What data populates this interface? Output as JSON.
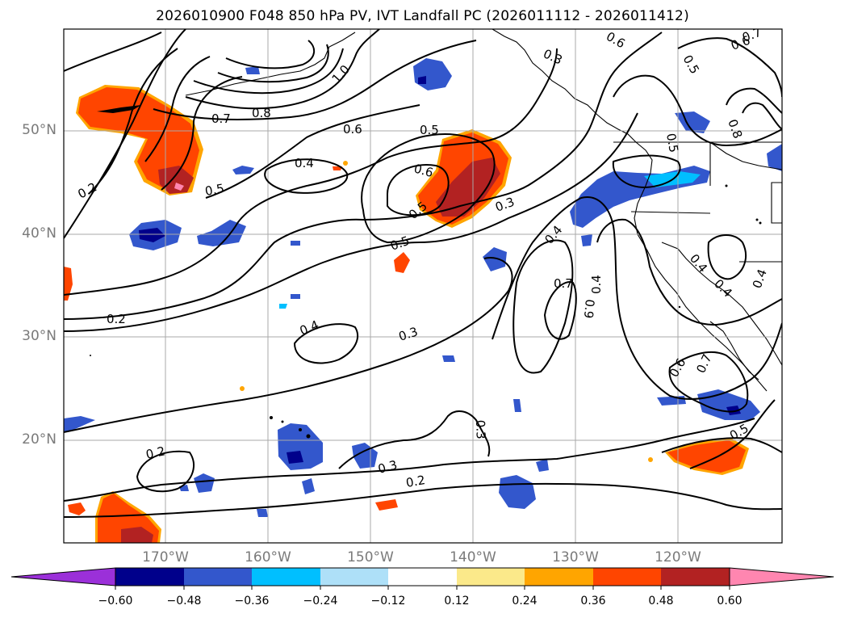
{
  "title": "2026010900 F048 850 hPa PV, IVT Landfall PC (2026011112 - 2026011412)",
  "lat_labels": [
    "50°N",
    "40°N",
    "30°N",
    "20°N"
  ],
  "lon_labels": [
    "170°W",
    "160°W",
    "150°W",
    "140°W",
    "130°W",
    "120°W"
  ],
  "contour_labels": [
    "0.2",
    "0.5",
    "0.7",
    "0.8",
    "1.0",
    "0.6",
    "0.4",
    "0.5",
    "0.6",
    "0.5",
    "0.3",
    "0.5",
    "0.3",
    "0.2",
    "0.4",
    "0.3",
    "0.2",
    "0.2",
    "0.3",
    "0.3",
    "0.4",
    "0.7",
    "0.9",
    "0.4",
    "0.6",
    "0.5",
    "0.6",
    "0.7",
    "0.8",
    "0.5",
    "0.4",
    "0.4",
    "0.4",
    "0.6",
    "0.7",
    "0.5"
  ],
  "colorbar": {
    "ticks": [
      "−0.60",
      "−0.48",
      "−0.36",
      "−0.24",
      "−0.12",
      "0.12",
      "0.24",
      "0.36",
      "0.48",
      "0.60"
    ],
    "colors": [
      "#9b30d9",
      "#00008b",
      "#3357cc",
      "#00bfff",
      "#aee0f8",
      "#ffffff",
      "#fbe98a",
      "#ffa500",
      "#ff4500",
      "#b22222",
      "#ff86b0"
    ]
  },
  "shading_colors": {
    "neg_strong": "#00008b",
    "neg_mid": "#3357cc",
    "neg_weak": "#00bfff",
    "neg_faint": "#aee0f8",
    "pos_faint": "#fbe98a",
    "pos_weak": "#ffa500",
    "pos_mid": "#ff4500",
    "pos_strong": "#b22222",
    "pos_max": "#ff86b0"
  }
}
